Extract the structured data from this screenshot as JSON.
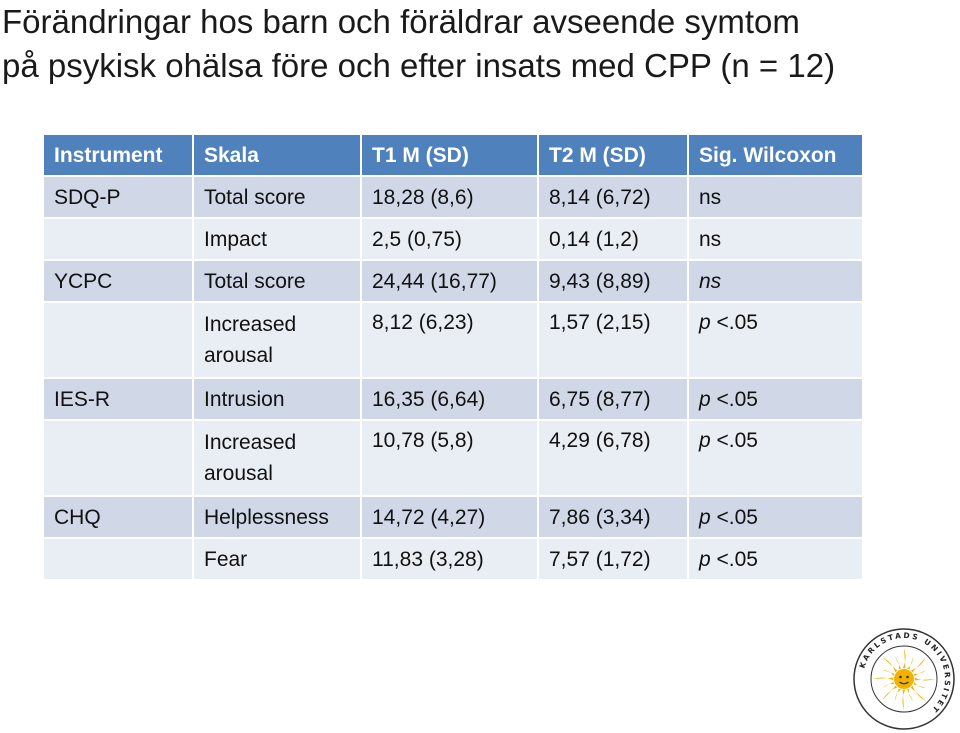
{
  "title_line1": "Förändringar hos barn och föräldrar avseende symtom",
  "title_line2": "på psykisk ohälsa före och efter insats med CPP (n = 12)",
  "table": {
    "headers": [
      "Instrument",
      "Skala",
      "T1 M (SD)",
      "T2 M (SD)",
      "Sig. Wilcoxon"
    ],
    "rows": [
      {
        "instrument": "SDQ-P",
        "scale": "Total score",
        "t1": "18,28 (8,6)",
        "t2": "8,14 (6,72)",
        "sig": "ns"
      },
      {
        "instrument": "",
        "scale": "Impact",
        "t1": "2,5 (0,75)",
        "t2": "0,14 (1,2)",
        "sig": "ns"
      },
      {
        "instrument": "YCPC",
        "scale": "Total score",
        "t1": "24,44 (16,77)",
        "t2": "9,43 (8,89)",
        "sig": "ns"
      },
      {
        "instrument": "",
        "scale": "Increased arousal",
        "t1": "8,12 (6,23)",
        "t2": "1,57 (2,15)",
        "sig": "p <.05"
      },
      {
        "instrument": "IES-R",
        "scale": "Intrusion",
        "t1": "16,35 (6,64)",
        "t2": "6,75 (8,77)",
        "sig": "p <.05"
      },
      {
        "instrument": "",
        "scale": "Increased arousal",
        "t1": "10,78 (5,8)",
        "t2": "4,29 (6,78)",
        "sig": "p <.05"
      },
      {
        "instrument": "CHQ",
        "scale": "Helplessness",
        "t1": "14,72 (4,27)",
        "t2": "7,86 (3,34)",
        "sig": "p <.05"
      },
      {
        "instrument": "",
        "scale": "Fear",
        "t1": "11,83 (3,28)",
        "t2": "7,57 (1,72)",
        "sig": "p <.05"
      }
    ]
  },
  "logo": {
    "text": "KARLSTADS UNIVERSITET",
    "sun_color": "#f2b300",
    "ring_color": "#333333"
  }
}
